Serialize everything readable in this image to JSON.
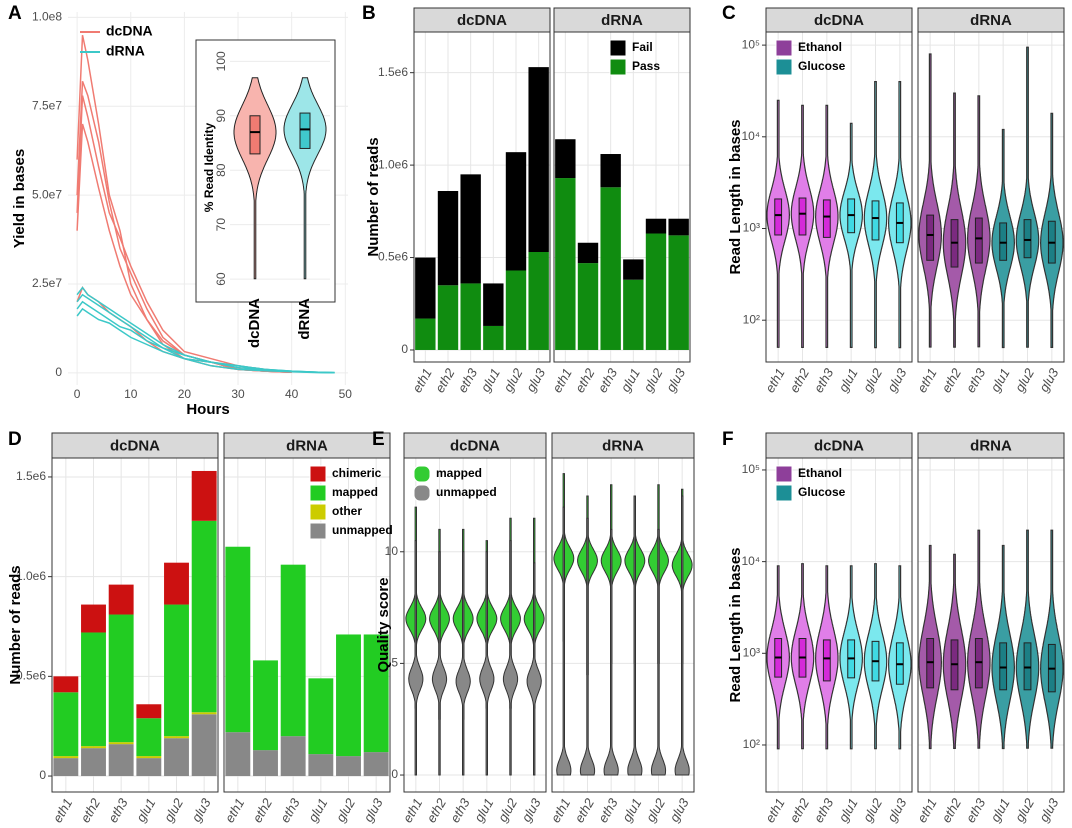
{
  "chart_data": [
    {
      "panel": "A",
      "type": "line",
      "xlabel": "Hours",
      "ylabel": "Yield in bases",
      "xlim": [
        -1.7,
        50.5
      ],
      "xticks": [
        0,
        10,
        20,
        30,
        40,
        50
      ],
      "ylim": [
        -3400000,
        101500000
      ],
      "yticks": [
        0,
        {
          "value": 25000000,
          "label": "2.5e7"
        },
        {
          "value": 50000000,
          "label": "5.0e7"
        },
        {
          "value": 75000000,
          "label": "7.5e7"
        },
        {
          "value": 100000000,
          "label": "1.0e8"
        }
      ],
      "grid": true,
      "legend": "top-left",
      "series": [
        {
          "name": "dcDNA",
          "color": "#f07b72",
          "x": [
            0,
            1,
            2,
            4,
            6,
            8,
            10,
            13,
            16,
            20,
            25,
            30,
            35,
            40
          ],
          "lines": [
            [
              60000000,
              95000000,
              88000000,
              70000000,
              50000000,
              40000000,
              25000000,
              15000000,
              8000000,
              4000000,
              2000000,
              1000000,
              500000,
              200000
            ],
            [
              50000000,
              82000000,
              78000000,
              65000000,
              48000000,
              35000000,
              28000000,
              18000000,
              10000000,
              5000000,
              3000000,
              1000000,
              500000,
              200000
            ],
            [
              45000000,
              78000000,
              72000000,
              58000000,
              45000000,
              38000000,
              30000000,
              20000000,
              12000000,
              6000000,
              4000000,
              2000000,
              1000000,
              300000
            ],
            [
              40000000,
              70000000,
              65000000,
              52000000,
              40000000,
              30000000,
              22000000,
              15000000,
              9000000,
              5000000,
              3000000,
              1000000,
              500000,
              200000
            ],
            [
              20000000,
              24000000,
              22000000,
              20000000,
              17000000,
              15000000,
              13000000,
              9000000,
              6000000,
              4000000,
              3000000,
              1000000,
              500000,
              200000
            ]
          ]
        },
        {
          "name": "dRNA",
          "color": "#3cc8c8",
          "x": [
            0,
            1,
            2,
            4,
            6,
            8,
            10,
            13,
            16,
            20,
            25,
            30,
            35,
            40,
            45,
            48
          ],
          "lines": [
            [
              22000000,
              24000000,
              22000000,
              20000000,
              18000000,
              16000000,
              14000000,
              11000000,
              8000000,
              5000000,
              3000000,
              2000000,
              1000000,
              500000,
              200000,
              100000
            ],
            [
              20000000,
              22000000,
              21000000,
              19000000,
              17000000,
              15000000,
              13000000,
              10000000,
              7000000,
              5000000,
              3000000,
              2000000,
              1000000,
              500000,
              200000,
              100000
            ],
            [
              18000000,
              20000000,
              19000000,
              17000000,
              15000000,
              13000000,
              12000000,
              9000000,
              7000000,
              4000000,
              3000000,
              1500000,
              800000,
              400000,
              200000,
              100000
            ],
            [
              16000000,
              18000000,
              17000000,
              15000000,
              14000000,
              12000000,
              10000000,
              8000000,
              6000000,
              4000000,
              2000000,
              1000000,
              600000,
              300000,
              100000,
              50000
            ]
          ]
        }
      ]
    },
    {
      "type": "violin",
      "ylabel": "% Read Identity",
      "categories": [
        "dcDNA",
        "dRNA"
      ],
      "colors": [
        "#f8b4ae",
        "#9de6e8"
      ],
      "box_colors": [
        "#f07b72",
        "#40c8cc"
      ],
      "stats": [
        [
          60,
          83,
          87,
          90,
          97
        ],
        [
          60,
          84,
          87.5,
          90.5,
          97
        ]
      ],
      "ylim": [
        58,
        103
      ],
      "yticks": [
        60,
        70,
        80,
        90,
        100
      ],
      "grid": true
    },
    {
      "panel": "B",
      "type": "stacked_bar",
      "ylabel": "Number of reads",
      "facets": [
        "dcDNA",
        "dRNA"
      ],
      "categories": [
        "eth1",
        "eth2",
        "eth3",
        "glu1",
        "glu2",
        "glu3"
      ],
      "ylim": [
        -65000,
        1720000
      ],
      "yticks": [
        0,
        {
          "value": 500000,
          "label": "0.5e6"
        },
        {
          "value": 1000000,
          "label": "1.0e6"
        },
        {
          "value": 1500000,
          "label": "1.5e6"
        }
      ],
      "grid": true,
      "legend": "top-right",
      "series": [
        {
          "name": "Fail",
          "color": "#000000",
          "values": [
            [
              330000,
              510000,
              590000,
              230000,
              640000,
              1000000
            ],
            [
              210000,
              110000,
              180000,
              110000,
              80000,
              90000
            ]
          ]
        },
        {
          "name": "Pass",
          "color": "#108c10",
          "values": [
            [
              170000,
              350000,
              360000,
              130000,
              430000,
              530000
            ],
            [
              930000,
              470000,
              880000,
              380000,
              630000,
              620000
            ]
          ]
        }
      ]
    },
    {
      "panel": "C",
      "type": "violin_box",
      "ylabel": "Read Length in bases",
      "facets": [
        "dcDNA",
        "dRNA"
      ],
      "log_y": true,
      "ylim": [
        35,
        139000
      ],
      "yticks": [
        {
          "value": 100,
          "label": "10²"
        },
        {
          "value": 1000,
          "label": "10³"
        },
        {
          "value": 10000,
          "label": "10⁴"
        },
        {
          "value": 100000,
          "label": "10⁵"
        }
      ],
      "grid": true,
      "legend": "top-left",
      "series": [
        {
          "name": "Ethanol",
          "color": "#8e3f9a",
          "colors": [
            "#e07ee8",
            "#a45aa9"
          ],
          "box_colors": [
            "#d42ad9",
            "#7b2a80"
          ],
          "categories": [
            "eth1",
            "eth2",
            "eth3"
          ],
          "stats": [
            [
              [
                50,
                850,
                1400,
                2100,
                25000
              ],
              [
                50,
                850,
                1450,
                2150,
                22000
              ],
              [
                50,
                800,
                1350,
                2050,
                22000
              ]
            ],
            [
              [
                50,
                450,
                850,
                1400,
                80000
              ],
              [
                50,
                380,
                700,
                1250,
                30000
              ],
              [
                50,
                420,
                780,
                1300,
                28000
              ]
            ]
          ]
        },
        {
          "name": "Glucose",
          "color": "#1c8f96",
          "colors": [
            "#7be8ee",
            "#3a9ea3"
          ],
          "box_colors": [
            "#3fd9e3",
            "#1c7f85"
          ],
          "categories": [
            "glu1",
            "glu2",
            "glu3"
          ],
          "stats": [
            [
              [
                50,
                900,
                1400,
                2100,
                14000
              ],
              [
                50,
                750,
                1300,
                2000,
                40000
              ],
              [
                50,
                700,
                1150,
                1900,
                40000
              ]
            ],
            [
              [
                50,
                450,
                700,
                1150,
                12000
              ],
              [
                50,
                480,
                750,
                1250,
                95000
              ],
              [
                50,
                420,
                700,
                1200,
                18000
              ]
            ]
          ]
        }
      ]
    },
    {
      "panel": "D",
      "type": "stacked_bar",
      "ylabel": "Number of reads",
      "facets": [
        "dcDNA",
        "dRNA"
      ],
      "categories": [
        "eth1",
        "eth2",
        "eth3",
        "glu1",
        "glu2",
        "glu3"
      ],
      "ylim": [
        -80000,
        1595000
      ],
      "yticks": [
        0,
        {
          "value": 500000,
          "label": "0.5e6"
        },
        {
          "value": 1000000,
          "label": "1.0e6"
        },
        {
          "value": 1500000,
          "label": "1.5e6"
        }
      ],
      "grid": true,
      "legend": "top-right",
      "series": [
        {
          "name": "chimeric",
          "color": "#cc1111",
          "values": [
            [
              80000,
              140000,
              150000,
              70000,
              210000,
              250000
            ],
            [
              0,
              0,
              0,
              0,
              0,
              0
            ]
          ]
        },
        {
          "name": "mapped",
          "color": "#22cc22",
          "values": [
            [
              320000,
              570000,
              640000,
              190000,
              660000,
              960000
            ],
            [
              930000,
              450000,
              860000,
              380000,
              610000,
              590000
            ]
          ]
        },
        {
          "name": "other",
          "color": "#cccc00",
          "values": [
            [
              10000,
              10000,
              10000,
              10000,
              10000,
              10000
            ],
            [
              0,
              0,
              0,
              0,
              0,
              0
            ]
          ]
        },
        {
          "name": "unmapped",
          "color": "#888888",
          "values": [
            [
              90000,
              140000,
              160000,
              90000,
              190000,
              310000
            ],
            [
              220000,
              130000,
              200000,
              110000,
              100000,
              120000
            ]
          ]
        }
      ]
    },
    {
      "panel": "E",
      "type": "violin_split",
      "ylabel": "Quality score",
      "facets": [
        "dcDNA",
        "dRNA"
      ],
      "categories": [
        "eth1",
        "eth2",
        "eth3",
        "glu1",
        "glu2",
        "glu3"
      ],
      "ylim": [
        -0.76,
        14.2
      ],
      "yticks": [
        0,
        5,
        10
      ],
      "grid": true,
      "legend": "top-left",
      "series": [
        {
          "name": "mapped",
          "color": "#33cc33",
          "stats": [
            [
              [
                3,
                7,
                12
              ],
              [
                2.5,
                7,
                11
              ],
              [
                2.5,
                7,
                11
              ],
              [
                3,
                7,
                10.5
              ],
              [
                3,
                7,
                11.5
              ],
              [
                3,
                7,
                11.5
              ]
            ],
            [
              [
                6,
                9.7,
                13.5
              ],
              [
                4.5,
                9.6,
                12.5
              ],
              [
                5,
                9.6,
                13
              ],
              [
                5,
                9.6,
                12.5
              ],
              [
                5,
                9.6,
                13
              ],
              [
                5,
                9.4,
                12.8
              ]
            ]
          ]
        },
        {
          "name": "unmapped",
          "color": "#888888",
          "stats": [
            [
              [
                0,
                4.3,
                10.5
              ],
              [
                0,
                4.3,
                10
              ],
              [
                0,
                4.2,
                10
              ],
              [
                0,
                4.3,
                10
              ],
              [
                0,
                4.3,
                10.5
              ],
              [
                0,
                4.2,
                9.5
              ]
            ],
            [
              [
                0,
                0.2,
                12
              ],
              [
                0,
                0.2,
                11.5
              ],
              [
                0,
                0.2,
                11
              ],
              [
                0,
                0.2,
                12.5
              ],
              [
                0,
                0.2,
                11
              ],
              [
                0,
                0.2,
                12.5
              ]
            ]
          ]
        }
      ]
    },
    {
      "panel": "F",
      "type": "violin_box",
      "ylabel": "Read Length in bases",
      "facets": [
        "dcDNA",
        "dRNA"
      ],
      "log_y": true,
      "ylim": [
        30.7,
        135000
      ],
      "yticks": [
        {
          "value": 100,
          "label": "10²"
        },
        {
          "value": 1000,
          "label": "10³"
        },
        {
          "value": 10000,
          "label": "10⁴"
        },
        {
          "value": 100000,
          "label": "10⁵"
        }
      ],
      "grid": true,
      "legend": "top-left",
      "series": [
        {
          "name": "Ethanol",
          "color": "#8e3f9a",
          "colors": [
            "#e07ee8",
            "#a45aa9"
          ],
          "box_colors": [
            "#d42ad9",
            "#7b2a80"
          ],
          "categories": [
            "eth1",
            "eth2",
            "eth3"
          ],
          "stats": [
            [
              [
                90,
                550,
                900,
                1450,
                9000
              ],
              [
                90,
                550,
                900,
                1450,
                9500
              ],
              [
                90,
                500,
                880,
                1400,
                9000
              ]
            ],
            [
              [
                90,
                420,
                800,
                1450,
                15000
              ],
              [
                90,
                400,
                760,
                1400,
                12000
              ],
              [
                90,
                420,
                800,
                1450,
                22000
              ]
            ]
          ]
        },
        {
          "name": "Glucose",
          "color": "#1c8f96",
          "colors": [
            "#7be8ee",
            "#3a9ea3"
          ],
          "box_colors": [
            "#3fd9e3",
            "#1c7f85"
          ],
          "categories": [
            "glu1",
            "glu2",
            "glu3"
          ],
          "stats": [
            [
              [
                90,
                540,
                880,
                1400,
                9000
              ],
              [
                90,
                500,
                820,
                1350,
                9500
              ],
              [
                90,
                460,
                760,
                1300,
                9000
              ]
            ],
            [
              [
                90,
                400,
                700,
                1300,
                15000
              ],
              [
                90,
                400,
                700,
                1300,
                22000
              ],
              [
                90,
                380,
                680,
                1250,
                22000
              ]
            ]
          ]
        }
      ]
    }
  ]
}
